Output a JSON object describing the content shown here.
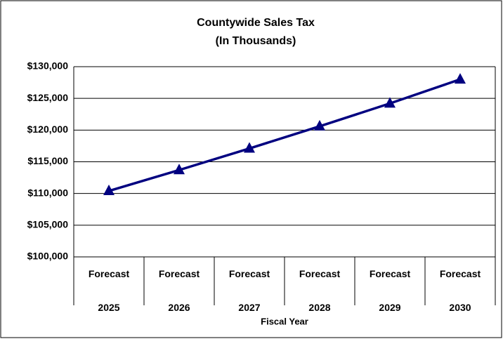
{
  "chart_data": {
    "type": "line",
    "title": "Countywide Sales Tax",
    "subtitle": "(In Thousands)",
    "x_label": "Fiscal Year",
    "categories": [
      "Forecast 2025",
      "Forecast 2026",
      "Forecast 2027",
      "Forecast 2028",
      "Forecast 2029",
      "Forecast 2030"
    ],
    "series": [
      {
        "name": "Countywide Sales Tax",
        "color": "#000080",
        "values": [
          110400,
          113700,
          117100,
          120600,
          124200,
          128000
        ]
      }
    ],
    "ylim": [
      100000,
      130000
    ],
    "yticks": [
      {
        "value": 100000,
        "label": "$100,000"
      },
      {
        "value": 105000,
        "label": "$105,000"
      },
      {
        "value": 110000,
        "label": "$110,000"
      },
      {
        "value": 115000,
        "label": "$115,000"
      },
      {
        "value": 120000,
        "label": "$120,000"
      },
      {
        "value": 125000,
        "label": "$125,000"
      },
      {
        "value": 130000,
        "label": "$130,000"
      }
    ],
    "grid": true,
    "marker": "triangle"
  }
}
